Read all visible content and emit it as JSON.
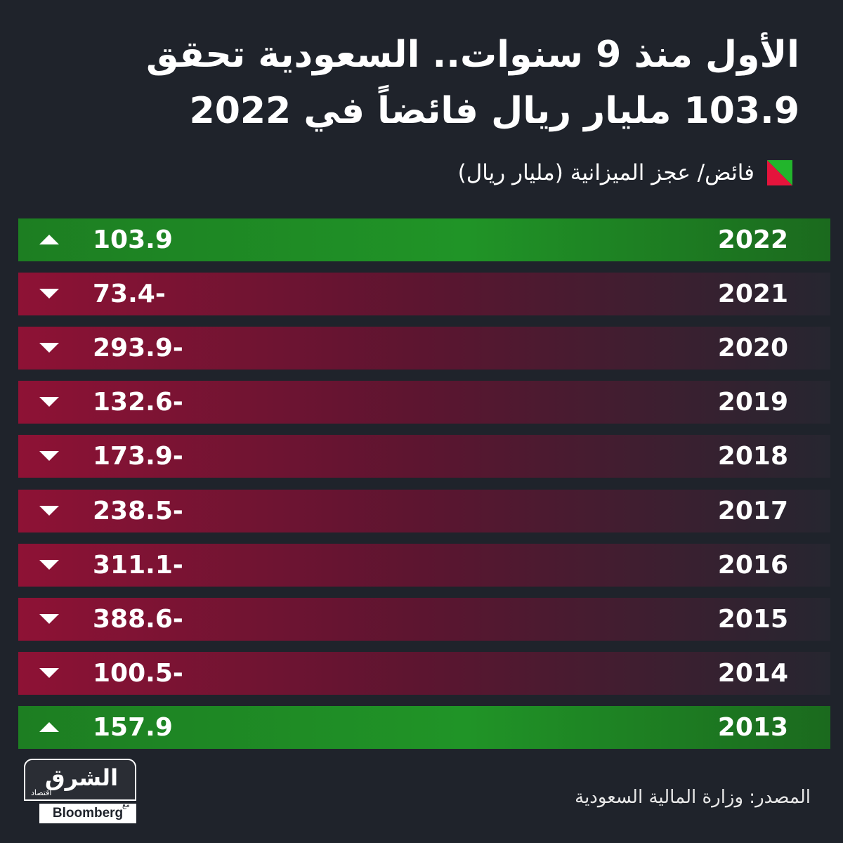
{
  "title_line1": "الأول منذ 9 سنوات.. السعودية تحقق",
  "title_line2": "103.9 مليار ريال فائضاً في 2022",
  "legend_label": "فائض/ عجز الميزانية (مليار ريال)",
  "colors": {
    "surplus": "#209427",
    "deficit": "#8e1235",
    "background": "#1f232b"
  },
  "icons": {
    "up": "triangle-up-icon",
    "down": "triangle-down-icon"
  },
  "chart_data": {
    "type": "table",
    "columns": [
      "year",
      "balance"
    ],
    "rows": [
      {
        "year": "2022",
        "label": "103.9",
        "value": 103.9
      },
      {
        "year": "2021",
        "label": "73.4-",
        "value": -73.4
      },
      {
        "year": "2020",
        "label": "293.9-",
        "value": -293.9
      },
      {
        "year": "2019",
        "label": "132.6-",
        "value": -132.6
      },
      {
        "year": "2018",
        "label": "173.9-",
        "value": -173.9
      },
      {
        "year": "2017",
        "label": "238.5-",
        "value": -238.5
      },
      {
        "year": "2016",
        "label": "311.1-",
        "value": -311.1
      },
      {
        "year": "2015",
        "label": "388.6-",
        "value": -388.6
      },
      {
        "year": "2014",
        "label": "100.5-",
        "value": -100.5
      },
      {
        "year": "2013",
        "label": "157.9",
        "value": 157.9
      }
    ]
  },
  "logo": {
    "arabic": "الشرق",
    "sub": "اقتصاد",
    "ma": "مع",
    "english": "Bloomberg"
  },
  "source": "المصدر: وزارة المالية السعودية"
}
